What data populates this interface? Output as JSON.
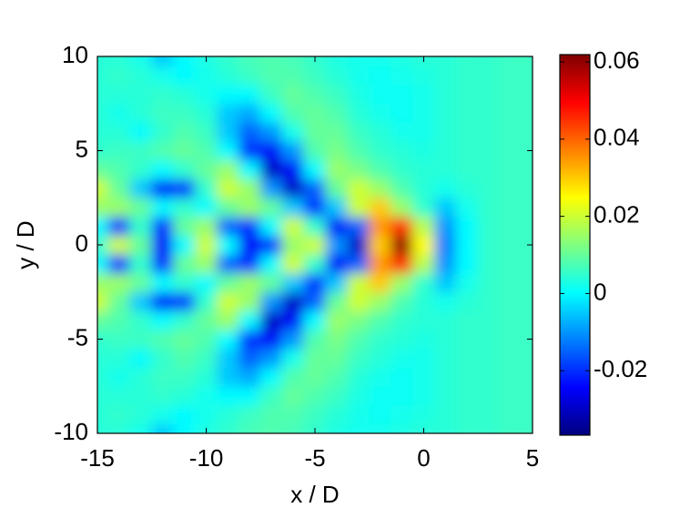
{
  "chart_data": {
    "type": "contour",
    "xlabel": "x / D",
    "ylabel": "y / D",
    "x": [
      -15,
      -14,
      -13,
      -12,
      -11,
      -10,
      -9,
      -8,
      -7,
      -6,
      -5,
      -4,
      -3,
      -2,
      -1,
      0,
      1,
      2,
      3,
      4,
      5
    ],
    "y": [
      -10,
      -9,
      -8,
      -7,
      -6,
      -5,
      -4,
      -3,
      -2,
      -1,
      0,
      1,
      2,
      3,
      4,
      5,
      6,
      7,
      8,
      9,
      10
    ],
    "z": [
      [
        0.004,
        0.004,
        0.002,
        -0.005,
        0,
        0.003,
        0.005,
        0.007,
        0.008,
        0.007,
        0.005,
        0.003,
        0.002,
        0.002,
        0.003,
        0.004,
        0.004,
        0.005,
        0.005,
        0.006,
        0.006
      ],
      [
        0.004,
        0.005,
        0.004,
        0.002,
        0,
        0.002,
        0.004,
        0.006,
        0.008,
        0.008,
        0.006,
        0.004,
        0.002,
        0.001,
        0.002,
        0.003,
        0.004,
        0.005,
        0.005,
        0.006,
        0.006
      ],
      [
        0.004,
        0.004,
        0.004,
        0.005,
        0.004,
        0.002,
        0,
        0,
        0.006,
        0.01,
        0.008,
        0.006,
        0.003,
        0.001,
        0.001,
        0.002,
        0.004,
        0.005,
        0.005,
        0.006,
        0.006
      ],
      [
        0.004,
        0.002,
        0.004,
        0.006,
        0.006,
        0.004,
        -0.005,
        -0.008,
        0,
        0.008,
        0.01,
        0.008,
        0.004,
        0.002,
        0.001,
        0.002,
        0.004,
        0.005,
        0.005,
        0.006,
        0.006
      ],
      [
        0.004,
        0.004,
        0,
        0.005,
        0.008,
        0.006,
        -0.005,
        -0.015,
        -0.01,
        0.002,
        0.01,
        0.01,
        0.006,
        0.004,
        0.002,
        0.002,
        0.004,
        0.005,
        0.005,
        0.006,
        0.006
      ],
      [
        0.005,
        0.006,
        0.006,
        0.008,
        0.01,
        0.008,
        0,
        -0.02,
        -0.025,
        -0.01,
        0.008,
        0.012,
        0.008,
        0.005,
        0.004,
        0.003,
        0.004,
        0.005,
        0.005,
        0.006,
        0.006
      ],
      [
        0.01,
        0.008,
        0.005,
        0,
        0.005,
        0.01,
        0.015,
        0,
        -0.03,
        -0.025,
        0,
        0.015,
        0.012,
        0.008,
        0.005,
        0.004,
        0.004,
        0.005,
        0.005,
        0.006,
        0.006
      ],
      [
        0.02,
        0.01,
        -0.005,
        -0.025,
        -0.02,
        0.005,
        0.02,
        0.015,
        -0.01,
        -0.03,
        -0.015,
        0.01,
        0.02,
        0.015,
        0.008,
        0.004,
        0.002,
        0.004,
        0.005,
        0.006,
        0.006
      ],
      [
        0.015,
        0.015,
        0.01,
        0,
        0.005,
        0,
        0.01,
        0.015,
        0.01,
        -0.005,
        -0.02,
        -0.005,
        0.02,
        0.03,
        0.015,
        0.005,
        -0.005,
        0.002,
        0.005,
        0.006,
        0.006
      ],
      [
        0,
        -0.02,
        0.005,
        -0.02,
        0.01,
        0.015,
        -0.015,
        -0.02,
        0,
        0.02,
        0.005,
        -0.025,
        -0.015,
        0.035,
        0.045,
        0.018,
        -0.01,
        0,
        0.005,
        0.006,
        0.006
      ],
      [
        0.005,
        0.02,
        0.01,
        -0.025,
        0,
        0.02,
        0,
        -0.025,
        -0.02,
        0.015,
        0.02,
        -0.01,
        -0.03,
        0.03,
        0.06,
        0.025,
        -0.012,
        0,
        0.005,
        0.006,
        0.006
      ],
      [
        0,
        -0.02,
        0.005,
        -0.02,
        0.01,
        0.015,
        -0.015,
        -0.02,
        0,
        0.02,
        0.005,
        -0.025,
        -0.015,
        0.035,
        0.045,
        0.018,
        -0.01,
        0,
        0.005,
        0.006,
        0.006
      ],
      [
        0.015,
        0.015,
        0.01,
        0,
        0.005,
        0,
        0.01,
        0.015,
        0.01,
        -0.005,
        -0.02,
        -0.005,
        0.02,
        0.03,
        0.015,
        0.005,
        -0.005,
        0.002,
        0.005,
        0.006,
        0.006
      ],
      [
        0.02,
        0.01,
        -0.005,
        -0.025,
        -0.02,
        0.005,
        0.02,
        0.015,
        -0.01,
        -0.03,
        -0.015,
        0.01,
        0.02,
        0.015,
        0.008,
        0.004,
        0.002,
        0.004,
        0.005,
        0.006,
        0.006
      ],
      [
        0.01,
        0.008,
        0.005,
        0,
        0.005,
        0.01,
        0.015,
        0,
        -0.03,
        -0.025,
        0,
        0.015,
        0.012,
        0.008,
        0.005,
        0.004,
        0.004,
        0.005,
        0.005,
        0.006,
        0.006
      ],
      [
        0.005,
        0.006,
        0.006,
        0.008,
        0.01,
        0.008,
        0,
        -0.02,
        -0.025,
        -0.01,
        0.008,
        0.012,
        0.008,
        0.005,
        0.004,
        0.003,
        0.004,
        0.005,
        0.005,
        0.006,
        0.006
      ],
      [
        0.004,
        0.004,
        0,
        0.005,
        0.008,
        0.006,
        -0.005,
        -0.015,
        -0.01,
        0.002,
        0.01,
        0.01,
        0.006,
        0.004,
        0.002,
        0.002,
        0.004,
        0.005,
        0.005,
        0.006,
        0.006
      ],
      [
        0.004,
        0.002,
        0.004,
        0.006,
        0.006,
        0.004,
        -0.005,
        -0.008,
        0,
        0.008,
        0.01,
        0.008,
        0.004,
        0.002,
        0.001,
        0.002,
        0.004,
        0.005,
        0.005,
        0.006,
        0.006
      ],
      [
        0.004,
        0.004,
        0.004,
        0.005,
        0.004,
        0.002,
        0,
        0,
        0.006,
        0.01,
        0.008,
        0.006,
        0.003,
        0.001,
        0.001,
        0.002,
        0.004,
        0.005,
        0.005,
        0.006,
        0.006
      ],
      [
        0.004,
        0.005,
        0.004,
        0.002,
        0,
        0.002,
        0.004,
        0.006,
        0.008,
        0.008,
        0.006,
        0.004,
        0.002,
        0.001,
        0.002,
        0.003,
        0.004,
        0.005,
        0.005,
        0.006,
        0.006
      ],
      [
        0.004,
        0.004,
        0.002,
        -0.005,
        0,
        0.003,
        0.005,
        0.007,
        0.008,
        0.007,
        0.005,
        0.003,
        0.002,
        0.002,
        0.003,
        0.004,
        0.004,
        0.005,
        0.005,
        0.006,
        0.006
      ]
    ],
    "xlim": [
      -15,
      5
    ],
    "ylim": [
      -10,
      10
    ],
    "xticks": [
      -15,
      -10,
      -5,
      0,
      5
    ],
    "yticks": [
      -10,
      -5,
      0,
      5,
      10
    ],
    "colormap": "jet",
    "clim": [
      -0.0367,
      0.0619
    ],
    "colorbar_ticks": [
      -0.02,
      0,
      0.02,
      0.04,
      0.06
    ]
  }
}
